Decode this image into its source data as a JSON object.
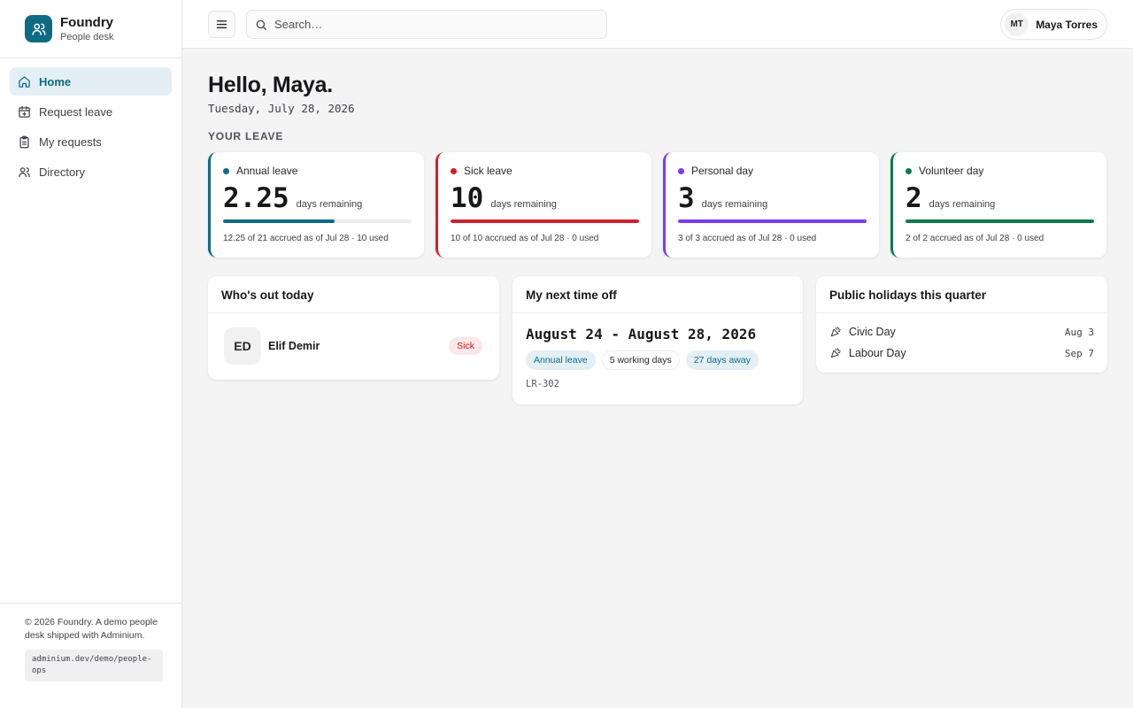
{
  "brand": {
    "name": "Foundry",
    "subtitle": "People desk"
  },
  "nav": [
    {
      "label": "Home",
      "icon": "home-icon",
      "active": true
    },
    {
      "label": "Request leave",
      "icon": "calendar-plus-icon"
    },
    {
      "label": "My requests",
      "icon": "clipboard-icon"
    },
    {
      "label": "Directory",
      "icon": "users-icon"
    }
  ],
  "footer": {
    "text": "© 2026 Foundry. A demo people desk shipped with Adminium.",
    "url": "adminium.dev/demo/people-ops"
  },
  "topbar": {
    "search_placeholder": "Search…",
    "user_initials": "MT",
    "user_name": "Maya Torres"
  },
  "greeting": "Hello, Maya.",
  "date": "Tuesday, July 28, 2026",
  "section_label": "YOUR LEAVE",
  "leave": [
    {
      "name": "Annual leave",
      "value": "2.25",
      "unit": "days remaining",
      "fraction": 0.59,
      "color": "#0f6b84",
      "footer": "12.25 of 21 accrued as of Jul 28 · 10 used"
    },
    {
      "name": "Sick leave",
      "value": "10",
      "unit": "days remaining",
      "fraction": 1.0,
      "color": "#d21f2e",
      "footer": "10 of 10 accrued as of Jul 28 · 0 used"
    },
    {
      "name": "Personal day",
      "value": "3",
      "unit": "days remaining",
      "fraction": 1.0,
      "color": "#7c3aed",
      "footer": "3 of 3 accrued as of Jul 28 · 0 used"
    },
    {
      "name": "Volunteer day",
      "value": "2",
      "unit": "days remaining",
      "fraction": 1.0,
      "color": "#0d7a4c",
      "footer": "2 of 2 accrued as of Jul 28 · 0 used"
    }
  ],
  "out_today": {
    "title": "Who's out today",
    "people": [
      {
        "initials": "ED",
        "name": "Elif Demir",
        "badge": "Sick"
      }
    ]
  },
  "next_time_off": {
    "title": "My next time off",
    "dates": "August 24 - August 28, 2026",
    "type": "Annual leave",
    "working_days": "5 working days",
    "away": "27 days away",
    "ref": "LR-302"
  },
  "holidays": {
    "title": "Public holidays this quarter",
    "items": [
      {
        "name": "Civic Day",
        "date": "Aug 3"
      },
      {
        "name": "Labour Day",
        "date": "Sep 7"
      }
    ]
  }
}
